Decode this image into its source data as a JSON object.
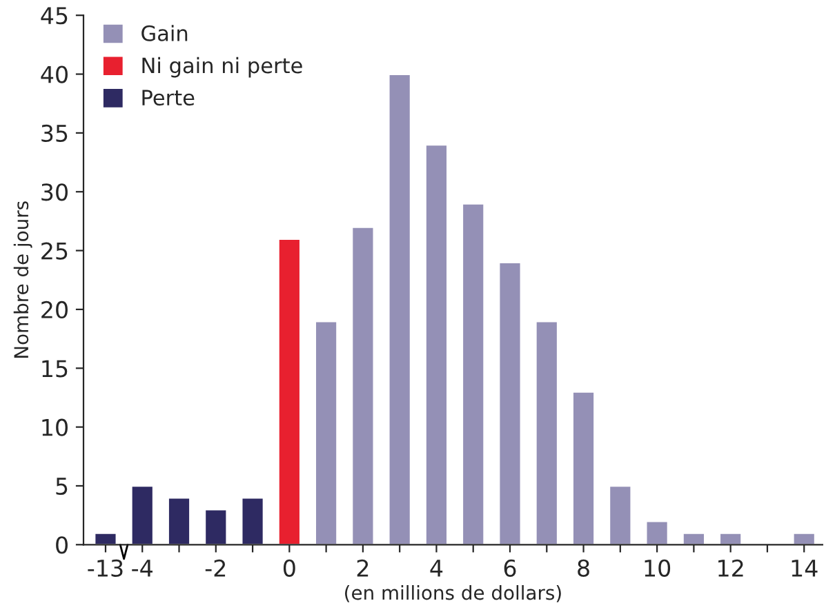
{
  "chart_data": {
    "type": "bar",
    "categories": [
      "-13",
      "-4",
      null,
      "-2",
      null,
      "0",
      null,
      "2",
      null,
      "4",
      null,
      "6",
      null,
      "8",
      null,
      "10",
      null,
      "12",
      null,
      "14"
    ],
    "series": [
      {
        "name": "Gain",
        "color": "#9490b6",
        "values": [
          null,
          null,
          null,
          null,
          null,
          null,
          19,
          27,
          40,
          34,
          29,
          24,
          19,
          13,
          5,
          2,
          1,
          1,
          null,
          1
        ]
      },
      {
        "name": "Ni gain ni perte",
        "color": "#e8202f",
        "values": [
          null,
          null,
          null,
          null,
          null,
          26,
          null,
          null,
          null,
          null,
          null,
          null,
          null,
          null,
          null,
          null,
          null,
          null,
          null,
          null
        ]
      },
      {
        "name": "Perte",
        "color": "#2e2a62",
        "values": [
          1,
          5,
          4,
          3,
          4,
          null,
          null,
          null,
          null,
          null,
          null,
          null,
          null,
          null,
          null,
          null,
          null,
          null,
          null,
          null
        ]
      }
    ],
    "ylabel": "Nombre de jours",
    "xlabel": "(en millions de dollars)",
    "ylim": [
      0,
      45
    ],
    "yticks": [
      0,
      5,
      10,
      15,
      20,
      25,
      30,
      35,
      40,
      45
    ],
    "grid": false,
    "legend": "top left"
  }
}
